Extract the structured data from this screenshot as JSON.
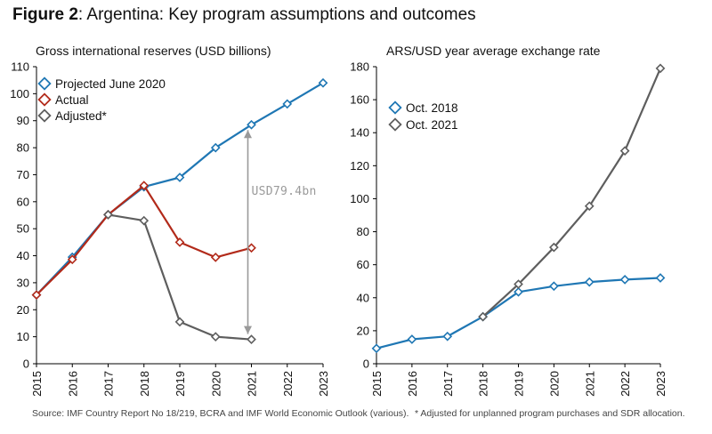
{
  "figure": {
    "label": "Figure 2",
    "title": ": Argentina: Key program assumptions and outcomes"
  },
  "footer": {
    "source": "Source: IMF Country Report No 18/219, BCRA and IMF World Economic Outlook (various).",
    "note": "* Adjusted for unplanned program purchases and SDR allocation."
  },
  "colors": {
    "blue": "#1f77b4",
    "red": "#b22a1a",
    "gray": "#5e5e5e",
    "arrow": "#9a9a9a"
  },
  "chart_data": [
    {
      "type": "line",
      "title": "Gross international reserves (USD billions)",
      "xlabel": "",
      "ylabel": "",
      "categories": [
        "2015",
        "2016",
        "2017",
        "2018",
        "2019",
        "2020",
        "2021",
        "2022",
        "2023"
      ],
      "ylim": [
        0,
        110
      ],
      "yticks": [
        0,
        10,
        20,
        30,
        40,
        50,
        60,
        70,
        80,
        90,
        100,
        110
      ],
      "series": [
        {
          "name": "Projected June 2020",
          "color": "#1f77b4",
          "values": [
            25.5,
            39.5,
            55.2,
            65.5,
            69,
            80,
            88.5,
            96.2,
            104
          ]
        },
        {
          "name": "Actual",
          "color": "#b22a1a",
          "values": [
            25.5,
            38.6,
            55.2,
            66,
            45,
            39.4,
            42.9,
            null,
            null
          ]
        },
        {
          "name": "Adjusted*",
          "color": "#5e5e5e",
          "values": [
            null,
            null,
            55.2,
            53,
            15.5,
            10,
            9,
            null,
            null
          ]
        }
      ],
      "legend": "top-left",
      "annotation": {
        "text": "USD79.4bn",
        "x": "2021",
        "from": 88.5,
        "to": 9
      }
    },
    {
      "type": "line",
      "title": "ARS/USD year average exchange rate",
      "xlabel": "",
      "ylabel": "",
      "categories": [
        "2015",
        "2016",
        "2017",
        "2018",
        "2019",
        "2020",
        "2021",
        "2022",
        "2023"
      ],
      "ylim": [
        0,
        180
      ],
      "yticks": [
        0,
        20,
        40,
        60,
        80,
        100,
        120,
        140,
        160,
        180
      ],
      "series": [
        {
          "name": "Oct. 2018",
          "color": "#1f77b4",
          "values": [
            9.3,
            14.8,
            16.6,
            28.5,
            43.5,
            47,
            49.5,
            51,
            52
          ]
        },
        {
          "name": "Oct. 2021",
          "color": "#5e5e5e",
          "values": [
            null,
            null,
            null,
            28.5,
            48.2,
            70.5,
            95.5,
            129,
            179
          ]
        }
      ],
      "legend": "top-left"
    }
  ]
}
